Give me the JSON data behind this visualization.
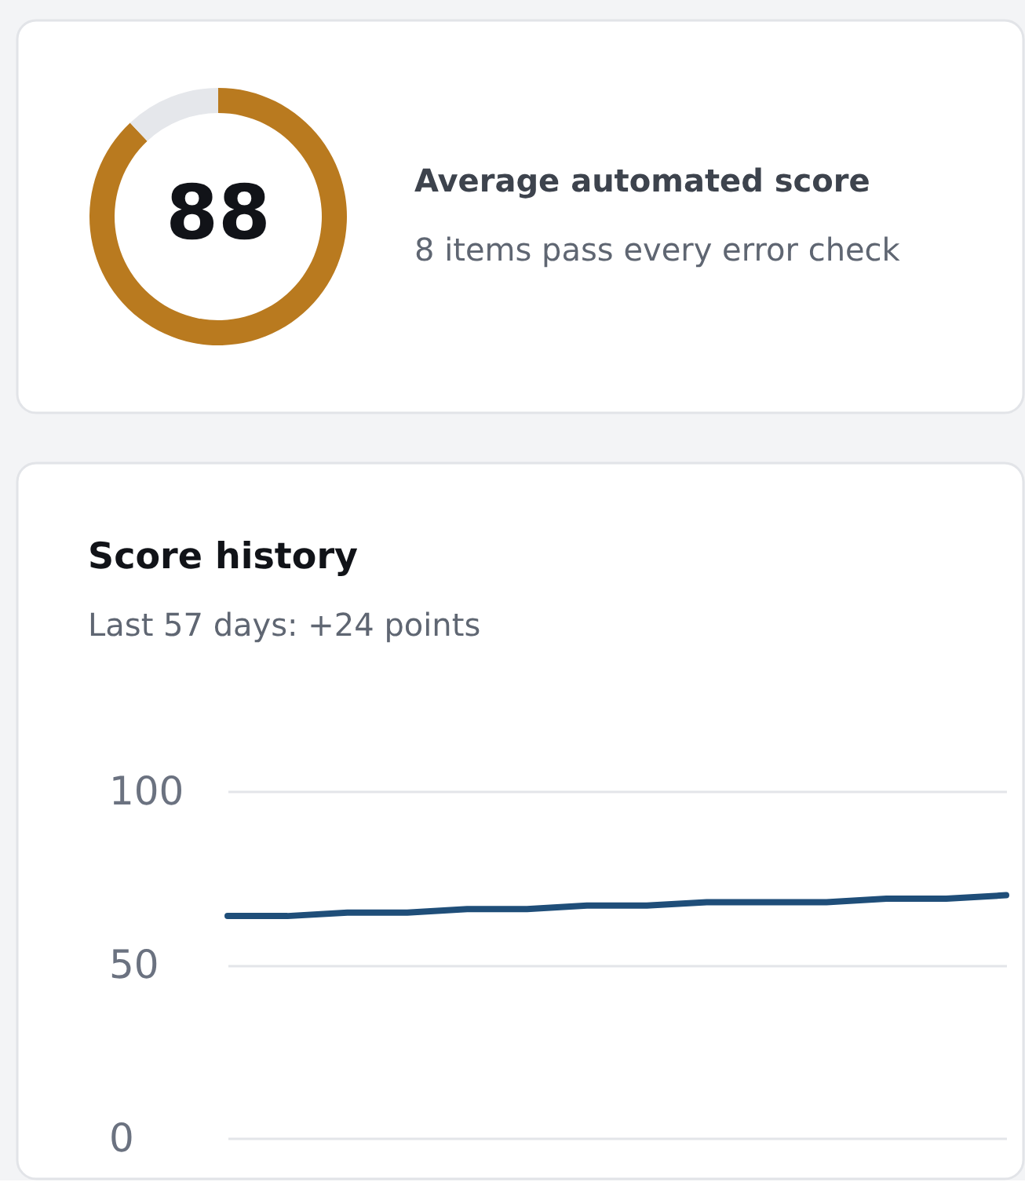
{
  "chart_data": [
    {
      "type": "donut",
      "title": "Average automated score",
      "subtitle": "8 items pass every error check",
      "categories": [
        null,
        null
      ],
      "values": [
        88,
        12
      ],
      "colors": [
        "#b97a1f",
        "#e5e7eb"
      ],
      "value_labels": [
        "88",
        null
      ]
    },
    {
      "type": "line",
      "title": "Score history",
      "subtitle": "Last 57 days: +24 points",
      "categories": [
        null,
        null,
        null,
        null,
        null,
        null,
        null,
        null,
        null,
        null,
        null,
        null,
        null,
        null
      ],
      "series": [
        {
          "color": "#1f4e79",
          "values": [
            64,
            64,
            65,
            65,
            66,
            66,
            67,
            67,
            68,
            68,
            68,
            69,
            69,
            70
          ]
        }
      ],
      "ylim": [
        0,
        100
      ],
      "yticks": [
        0,
        50,
        100
      ],
      "grid": "y",
      "tick_labels": "y"
    }
  ]
}
